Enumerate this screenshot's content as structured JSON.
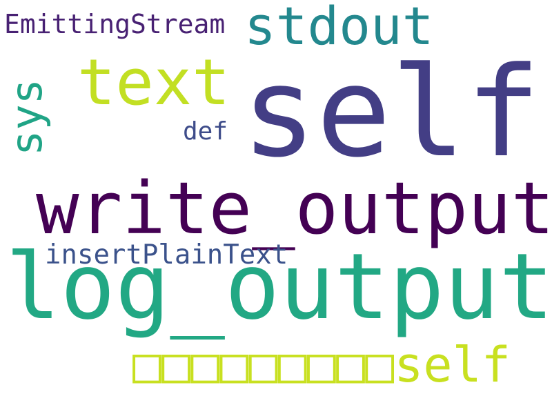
{
  "word_cloud": {
    "words": [
      {
        "text": "self",
        "color": "#433e85"
      },
      {
        "text": "write_output",
        "color": "#440154"
      },
      {
        "text": "log_output",
        "color": "#22a884"
      },
      {
        "text": "text",
        "color": "#c2df23"
      },
      {
        "text": "stdout",
        "color": "#23888e"
      },
      {
        "text": "sys",
        "color": "#20a486"
      },
      {
        "text": "EmittingStream",
        "color": "#482173"
      },
      {
        "text": "def",
        "color": "#3e4c8a"
      },
      {
        "text": "insertPlainText",
        "color": "#3b528b"
      },
      {
        "text": "□□□□□□□□□self",
        "color": "#c8e020"
      }
    ]
  }
}
